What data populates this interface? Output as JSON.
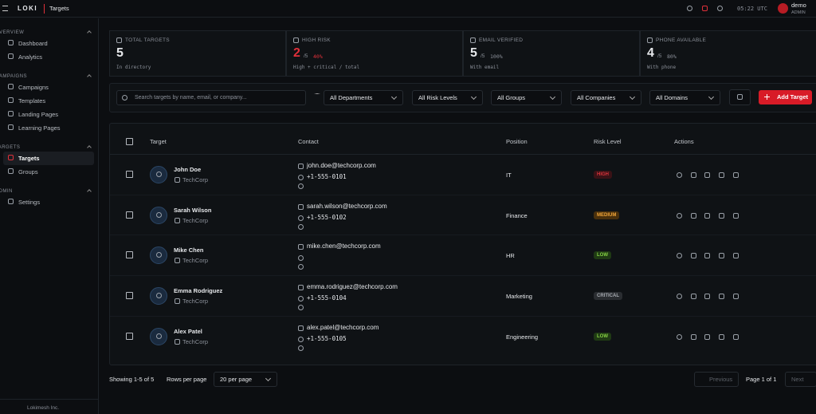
{
  "header": {
    "brand": "LOKI",
    "page": "Targets",
    "time": "05:22 UTC",
    "user": "demo",
    "role": "ADMIN"
  },
  "sidebar": {
    "sections": [
      {
        "title": "OVERVIEW",
        "items": [
          "Dashboard",
          "Analytics"
        ]
      },
      {
        "title": "CAMPAIGNS",
        "items": [
          "Campaigns",
          "Templates",
          "Landing Pages",
          "Learning Pages"
        ]
      },
      {
        "title": "TARGETS",
        "items": [
          "Targets",
          "Groups"
        ]
      },
      {
        "title": "ADMIN",
        "items": [
          "Settings"
        ]
      }
    ],
    "active": "Targets",
    "footer": "Lokimesh Inc."
  },
  "stats": [
    {
      "label": "TOTAL TARGETS",
      "value": 5,
      "note": "In directory"
    },
    {
      "label": "HIGH RISK",
      "value": 2,
      "total": "/5",
      "percent": "40%",
      "note": "High + critical / total"
    },
    {
      "label": "EMAIL VERIFIED",
      "value": 5,
      "total": "/5",
      "percent": "100%",
      "note": "With email"
    },
    {
      "label": "PHONE AVAILABLE",
      "value": 4,
      "total": "/5",
      "percent": "80%",
      "note": "With phone"
    }
  ],
  "filters": {
    "search": "Search targets by name, email, or company...",
    "dropdowns": [
      "All Departments",
      "All Risk Levels",
      "All Groups",
      "All Companies",
      "All Domains"
    ],
    "add": "Add Target"
  },
  "table": {
    "columns": [
      "Target",
      "Contact",
      "Position",
      "Risk Level",
      "Actions"
    ],
    "rows": [
      {
        "name": "John Doe",
        "company": "TechCorp",
        "email": "john.doe@techcorp.com",
        "phone": "+1-555-0101",
        "position": "IT",
        "risk": "HIGH"
      },
      {
        "name": "Sarah Wilson",
        "company": "TechCorp",
        "email": "sarah.wilson@techcorp.com",
        "phone": "+1-555-0102",
        "position": "Finance",
        "risk": "MEDIUM"
      },
      {
        "name": "Mike Chen",
        "company": "TechCorp",
        "email": "mike.chen@techcorp.com",
        "position": "HR",
        "risk": "LOW"
      },
      {
        "name": "Emma Rodriguez",
        "company": "TechCorp",
        "email": "emma.rodriguez@techcorp.com",
        "phone": "+1-555-0104",
        "position": "Marketing",
        "risk": "CRITICAL"
      },
      {
        "name": "Alex Patel",
        "company": "TechCorp",
        "email": "alex.patel@techcorp.com",
        "phone": "+1-555-0105",
        "position": "Engineering",
        "risk": "LOW"
      }
    ]
  },
  "pagination": {
    "showing": "Showing 1-5 of 5",
    "rows_label": "Rows per page",
    "rows_value": "20 per page",
    "previous": "Previous",
    "page": "Page 1 of 1",
    "next": "Next"
  }
}
